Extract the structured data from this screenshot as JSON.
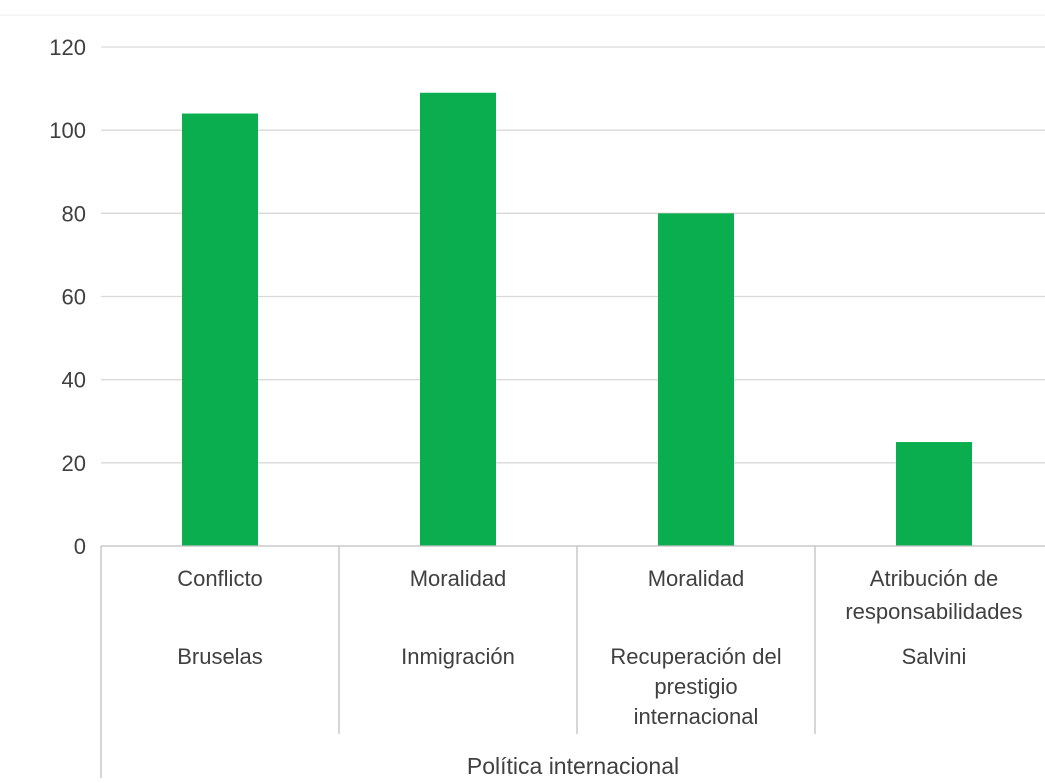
{
  "chart_data": {
    "type": "bar",
    "title": "",
    "xlabel": "",
    "ylabel": "",
    "ylim": [
      0,
      120
    ],
    "yticks": [
      0,
      20,
      40,
      60,
      80,
      100,
      120
    ],
    "grid": true,
    "legend": "none",
    "bar_color": "#0BAE4F",
    "categories": [
      {
        "row1": [
          "Conflicto"
        ],
        "row2": [
          "Bruselas"
        ],
        "value": 104
      },
      {
        "row1": [
          "Moralidad"
        ],
        "row2": [
          "Inmigración"
        ],
        "value": 109
      },
      {
        "row1": [
          "Moralidad"
        ],
        "row2": [
          "Recuperación del",
          "prestigio",
          "internacional"
        ],
        "value": 80
      },
      {
        "row1": [
          "Atribución de",
          "responsabilidades"
        ],
        "row2": [
          "Salvini"
        ],
        "value": 25
      }
    ],
    "group_label": "Política internacional"
  }
}
